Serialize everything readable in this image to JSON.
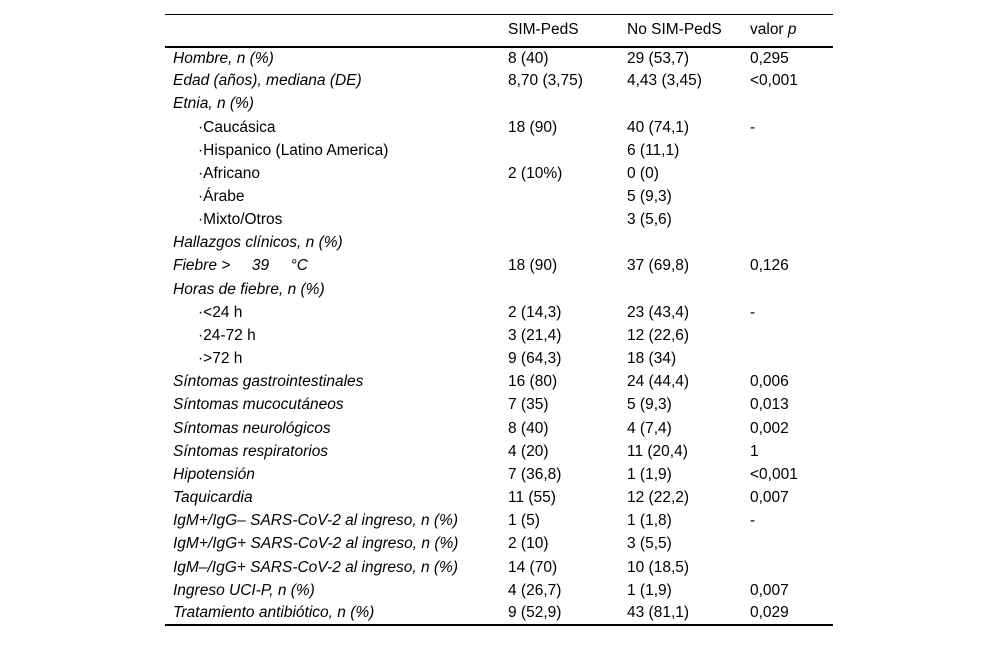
{
  "colors": {
    "background": "#ffffff",
    "text": "#000000",
    "rule": "#000000"
  },
  "header": {
    "col_label": "",
    "col_sim": "SIM-PedS",
    "col_nosim": "No SIM-PedS",
    "col_p_prefix": "valor ",
    "col_p_italic": "p"
  },
  "table": {
    "rows": [
      {
        "label": "Hombre, n (%)",
        "sim": "8 (40)",
        "nosim": "29 (53,7)",
        "p": "0,295",
        "indent": false
      },
      {
        "label": "Edad (años), mediana (DE)",
        "sim": "8,70 (3,75)",
        "nosim": "4,43 (3,45)",
        "p": "<0,001",
        "indent": false
      },
      {
        "label": "Etnia, n (%)",
        "sim": "",
        "nosim": "",
        "p": "",
        "indent": false
      },
      {
        "label": "·Caucásica",
        "sim": "18 (90)",
        "nosim": "40 (74,1)",
        "p": "-",
        "indent": true
      },
      {
        "label": "·Hispanico (Latino America)",
        "sim": "",
        "nosim": "6 (11,1)",
        "p": "",
        "indent": true
      },
      {
        "label": "·Africano",
        "sim": "2 (10%)",
        "nosim": "0 (0)",
        "p": "",
        "indent": true
      },
      {
        "label": "·Árabe",
        "sim": "",
        "nosim": "5 (9,3)",
        "p": "",
        "indent": true
      },
      {
        "label": "·Mixto/Otros",
        "sim": "",
        "nosim": "3 (5,6)",
        "p": "",
        "indent": true
      },
      {
        "label": "Hallazgos clínicos, n (%)",
        "sim": "",
        "nosim": "",
        "p": "",
        "indent": false
      },
      {
        "label": "Fiebre >     39     °C",
        "sim": "18 (90)",
        "nosim": "37 (69,8)",
        "p": "0,126",
        "indent": false
      },
      {
        "label": "Horas de fiebre, n (%)",
        "sim": "",
        "nosim": "",
        "p": "",
        "indent": false
      },
      {
        "label": "·<24 h",
        "sim": "2 (14,3)",
        "nosim": "23 (43,4)",
        "p": "-",
        "indent": true
      },
      {
        "label": "·24-72 h",
        "sim": "3 (21,4)",
        "nosim": "12 (22,6)",
        "p": "",
        "indent": true
      },
      {
        "label": "·>72 h",
        "sim": "9 (64,3)",
        "nosim": "18 (34)",
        "p": "",
        "indent": true
      },
      {
        "label": "Síntomas gastrointestinales",
        "sim": "16 (80)",
        "nosim": "24 (44,4)",
        "p": "0,006",
        "indent": false
      },
      {
        "label": "Síntomas mucocutáneos",
        "sim": "7 (35)",
        "nosim": "5 (9,3)",
        "p": "0,013",
        "indent": false
      },
      {
        "label": "Síntomas neurológicos",
        "sim": "8 (40)",
        "nosim": "4 (7,4)",
        "p": "0,002",
        "indent": false
      },
      {
        "label": "Síntomas respiratorios",
        "sim": "4 (20)",
        "nosim": "11 (20,4)",
        "p": "1",
        "indent": false
      },
      {
        "label": "Hipotensión",
        "sim": "7 (36,8)",
        "nosim": "1 (1,9)",
        "p": "<0,001",
        "indent": false
      },
      {
        "label": "Taquicardia",
        "sim": "11 (55)",
        "nosim": "12 (22,2)",
        "p": "0,007",
        "indent": false
      },
      {
        "label": "IgM+/IgG– SARS-CoV-2 al ingreso, n (%)",
        "sim": "1 (5)",
        "nosim": "1 (1,8)",
        "p": "-",
        "indent": false
      },
      {
        "label": "IgM+/IgG+ SARS-CoV-2 al ingreso, n (%)",
        "sim": "2 (10)",
        "nosim": "3 (5,5)",
        "p": "",
        "indent": false
      },
      {
        "label": "IgM–/IgG+ SARS-CoV-2 al ingreso, n (%)",
        "sim": "14 (70)",
        "nosim": "10 (18,5)",
        "p": "",
        "indent": false
      },
      {
        "label": "Ingreso UCI-P, n (%)",
        "sim": "4 (26,7)",
        "nosim": "1 (1,9)",
        "p": "0,007",
        "indent": false
      },
      {
        "label": "Tratamiento antibiótico, n (%)",
        "sim": "9 (52,9)",
        "nosim": "43 (81,1)",
        "p": "0,029",
        "indent": false
      }
    ]
  }
}
